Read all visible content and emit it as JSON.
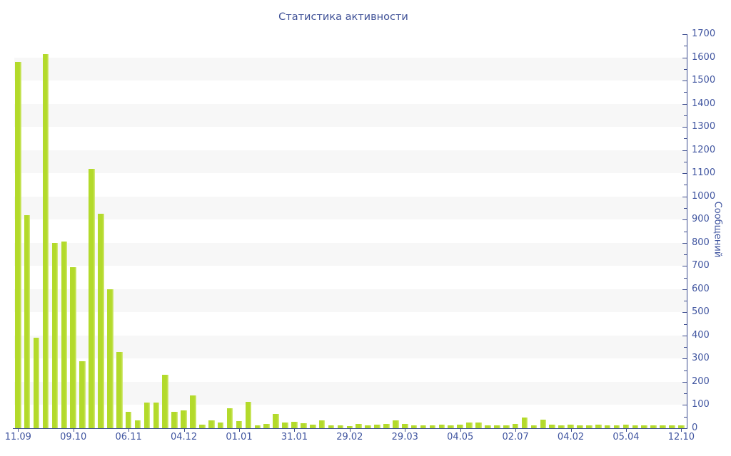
{
  "chart_data": {
    "type": "bar",
    "title": "Статистика активности",
    "ylabel": "Сообщений",
    "xlabel": "",
    "ylim": [
      0,
      1700
    ],
    "y_major_step": 100,
    "y_minor_step": 50,
    "legend": "none",
    "grid": "horizontal striped bands, 100 units each, alternating white and light gray",
    "x_tick_every_n_bars": 6,
    "x_tick_labels": [
      "11.09",
      "09.10",
      "06.11",
      "04.12",
      "01.01",
      "31.01",
      "29.02",
      "29.03",
      "04.05",
      "02.07",
      "04.02",
      "05.04",
      "12.10"
    ],
    "values": [
      1580,
      920,
      390,
      1615,
      800,
      805,
      695,
      290,
      1120,
      925,
      600,
      330,
      70,
      35,
      110,
      110,
      230,
      70,
      78,
      140,
      15,
      35,
      25,
      85,
      32,
      115,
      13,
      20,
      62,
      24,
      29,
      21,
      15,
      35,
      13,
      11,
      8,
      18,
      13,
      15,
      20,
      34,
      18,
      13,
      11,
      13,
      15,
      13,
      15,
      24,
      25,
      13,
      11,
      13,
      20,
      45,
      13,
      38,
      16,
      13,
      16,
      13,
      11,
      15,
      12,
      12,
      14,
      12,
      13,
      12,
      13,
      12,
      12
    ],
    "colors": {
      "bar_fill": "#b3da2b",
      "bar_highlight": "#d9ec85",
      "axis_line": "#3c4c8f",
      "label_text": "#4055a0",
      "title_text": "#3e5096",
      "stripe_gray": "#f7f7f7",
      "stripe_white": "#ffffff",
      "background": "#ffffff"
    }
  }
}
